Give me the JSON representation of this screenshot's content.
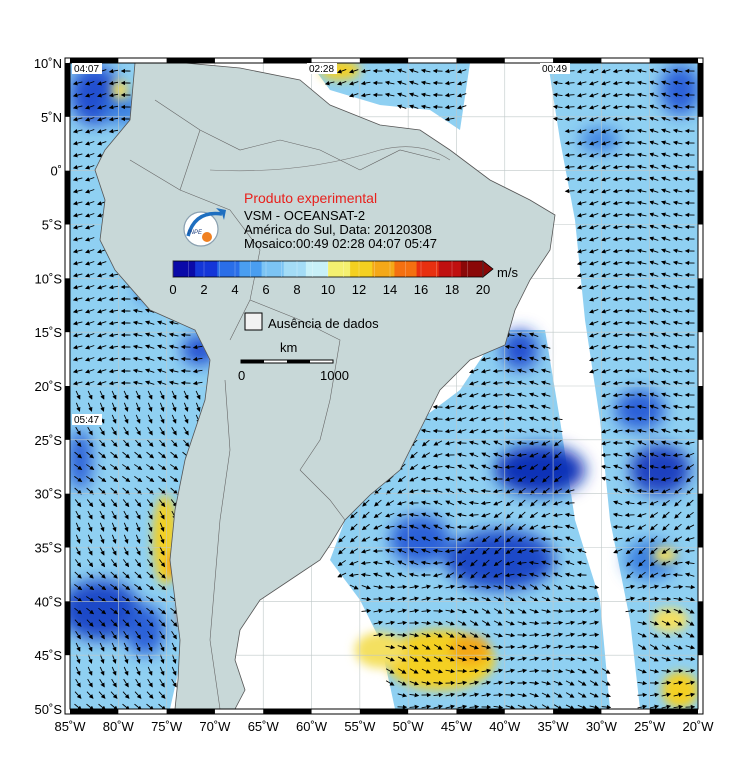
{
  "map": {
    "lat_labels": [
      "10˚N",
      "5˚N",
      "0˚",
      "5˚S",
      "10˚S",
      "15˚S",
      "20˚S",
      "25˚S",
      "30˚S",
      "35˚S",
      "40˚S",
      "45˚S",
      "50˚S"
    ],
    "lon_labels": [
      "85˚W",
      "80˚W",
      "75˚W",
      "70˚W",
      "65˚W",
      "60˚W",
      "55˚W",
      "50˚W",
      "45˚W",
      "40˚W",
      "35˚W",
      "30˚W",
      "25˚W",
      "20˚W"
    ],
    "extent": {
      "lon": [
        -85,
        -20
      ],
      "lat": [
        -50,
        10
      ]
    },
    "pass_times": {
      "west_north": "04:07",
      "center_north": "02:28",
      "east_north": "00:49",
      "west_south": "05:47"
    }
  },
  "info": {
    "title_red": "Produto experimental",
    "line1": "VSM - OCEANSAT-2",
    "line2": "América do Sul, Data: 20120308",
    "line3": "Mosaico:00:49 02:28 04:07 05:47",
    "logo_text": "INPE"
  },
  "colorbar": {
    "unit": "m/s",
    "ticks": [
      "0",
      "2",
      "4",
      "6",
      "8",
      "10",
      "12",
      "14",
      "16",
      "18",
      "20"
    ],
    "range": [
      0,
      20
    ],
    "colors": [
      "#0a0aa8",
      "#1436d8",
      "#2a6ee8",
      "#4a9ef0",
      "#7cc4f4",
      "#a4dcf6",
      "#c8f0f8",
      "#f4f070",
      "#f4d020",
      "#f4a818",
      "#f47010",
      "#e83010",
      "#c01010",
      "#8a0808"
    ]
  },
  "legend": {
    "no_data_label": "Ausência de dados"
  },
  "scale": {
    "unit": "km",
    "start": "0",
    "end": "1000"
  }
}
